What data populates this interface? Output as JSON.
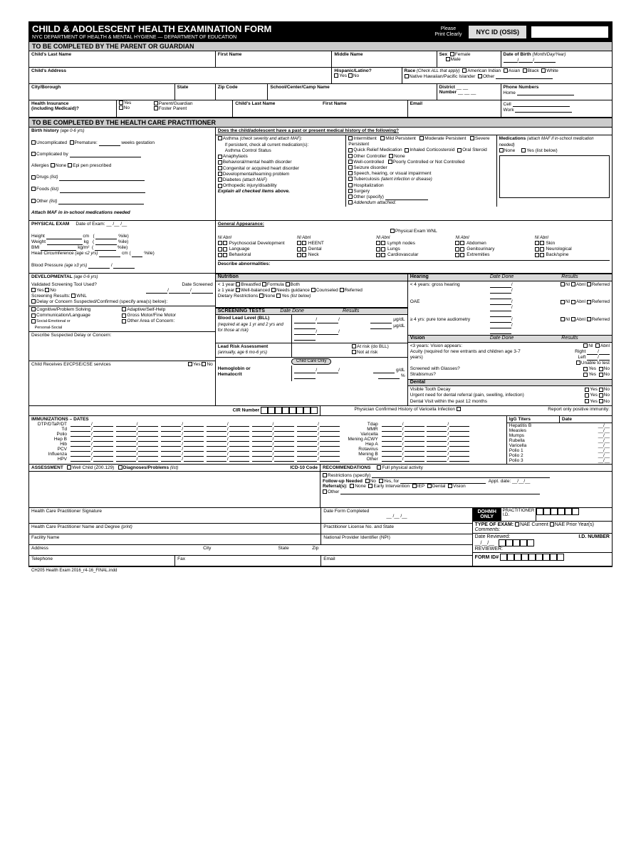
{
  "header": {
    "title": "CHILD & ADOLESCENT HEALTH EXAMINATION FORM",
    "subtitle": "NYC DEPARTMENT OF HEALTH & MENTAL HYGIENE   —   DEPARTMENT OF EDUCATION",
    "please": "Please\nPrint Clearly",
    "nycid": "NYC ID (OSIS)"
  },
  "sections": {
    "parent": "TO BE COMPLETED BY THE PARENT OR GUARDIAN",
    "practitioner": "TO BE COMPLETED BY THE HEALTH CARE PRACTITIONER"
  },
  "parent_fields": {
    "lastname": "Child's Last Name",
    "firstname": "First Name",
    "middlename": "Middle Name",
    "sex": "Sex",
    "female": "Female",
    "male": "Male",
    "dob": "Date of Birth",
    "dob_hint": "(Month/Day/Year)",
    "address": "Child's Address",
    "hisp": "Hispanic/Latino?",
    "yes": "Yes",
    "no": "No",
    "race": "Race",
    "race_hint": "(Check ALL that apply)",
    "races": [
      "American Indian",
      "Asian",
      "Black",
      "White",
      "Native Hawaiian/Pacific Islander",
      "Other"
    ],
    "city": "City/Borough",
    "state": "State",
    "zip": "Zip Code",
    "school": "School/Center/Camp Name",
    "district": "District",
    "number": "Number",
    "phones": "Phone Numbers",
    "home": "Home",
    "cell": "Cell",
    "work": "Work",
    "insurance": "Health Insurance\n(including Medicaid)?",
    "pg": "Parent/Guardian",
    "fp": "Foster Parent",
    "email": "Email"
  },
  "birth": {
    "label": "Birth history",
    "hint": "(age 0-6 yrs)",
    "uncomp": "Uncomplicated",
    "prem": "Premature:",
    "weeks": "weeks gestation",
    "compby": "Complicated by",
    "allergies": "Allergies",
    "none": "None",
    "epi": "Epi pen prescribed",
    "drugs": "Drugs",
    "list": "(list)",
    "foods": "Foods",
    "other": "Other",
    "maf": "Attach MAF in in-school medications needed"
  },
  "medhx": {
    "q": "Does the child/adolescent have a past or present medical history of the following?",
    "asthma": "Asthma",
    "asthma_hint": "(check severity and attach MAF):",
    "pers": "If persistent, check all current medication(s):",
    "acs": "Asthma Control Status",
    "col1": [
      "Anaphylaxis",
      "Behavioral/mental health disorder",
      "Congenital or acquired heart disorder",
      "Developmental/learning problem",
      "Diabetes",
      "Orthopedic injury/disability"
    ],
    "diab_hint": "(attach MAF)",
    "explain": "Explain all checked items above.",
    "sev": [
      "Intermittent",
      "Mild Persistent",
      "Moderate Persistent",
      "Severe Persistent"
    ],
    "meds_line": [
      "Quick Relief Medication",
      "Inhaled Corticosteroid",
      "Oral Steroid",
      "Other Controller",
      "None"
    ],
    "ctrl": [
      "Well-controlled",
      "Poorly Controlled or Not Controlled"
    ],
    "col2": [
      "Seizure disorder",
      "Speech, hearing, or visual impairment",
      "Tuberculosis",
      "Hospitalization",
      "Surgery",
      "Other (specify)",
      "Addendum attached."
    ],
    "tb_hint": "(latent infection or disease)",
    "medications": "Medications",
    "med_hint": "(attach MAF if in-school medication needed)",
    "yes_below": "Yes (list below)"
  },
  "phys": {
    "title": "PHYSICAL EXAM",
    "doe": "Date of Exam:",
    "height": "Height",
    "cm": "cm",
    "pct": "%ile",
    "weight": "Weight",
    "kg": "kg",
    "bmi": "BMI",
    "kgm2": "kg/m²",
    "hc": "Head Circumference",
    "hc_hint": "(age ≤2 yrs)",
    "bp": "Blood Pressure",
    "bp_hint": "(age ≥3 yrs)"
  },
  "ga": {
    "title": "General Appearance:",
    "wnl": "Physical Exam WNL",
    "col_hdr": "Nl  Abnl",
    "rows1": [
      "Psychosocial Development",
      "Language",
      "Behavioral"
    ],
    "rows2": [
      "HEENT",
      "Dental",
      "Neck"
    ],
    "rows3": [
      "Lymph nodes",
      "Lungs",
      "Cardiovascular"
    ],
    "rows4": [
      "Abdomen",
      "Genitourinary",
      "Extremities"
    ],
    "rows5": [
      "Skin",
      "Neurological",
      "Back/spine"
    ],
    "desc": "Describe abnormalities:"
  },
  "dev": {
    "title": "DEVELOPMENTAL",
    "hint": "(age 0-6 yrs)",
    "vs": "Validated Screening Tool Used?",
    "ds": "Date Screened",
    "sr": "Screening Results:",
    "wnl": "WNL",
    "delay": "Delay or Concern Suspected/Confirmed (specify area(s) below):",
    "areas": [
      "Cognitive/Problem Solving",
      "Communication/Language",
      "Social-Emotional or\nPersonal-Social",
      "Adaptive/Self-Help",
      "Gross Motor/Fine Motor",
      "Other Area of Concern:"
    ],
    "describe": "Describe Suspected Delay or Concern:",
    "ei": "Child Receives EI/CPSE/CSE services"
  },
  "nutrition": {
    "title": "Nutrition",
    "lt1": "< 1 year",
    "bf": "Breastfed",
    "fm": "Formula",
    "both": "Both",
    "ge1": "≥ 1 year",
    "wb": "Well-balanced",
    "ng": "Needs guidance",
    "co": "Counseled",
    "ref": "Referred",
    "dr": "Dietary Restrictions",
    "listbelow": "(list below)"
  },
  "screen": {
    "title": "SCREENING TESTS",
    "dd": "Date Done",
    "res": "Results",
    "bll": "Blood Lead Level (BLL)",
    "bll_hint": "(required at age 1 yr and 2 yrs and for those at risk)",
    "ugdl": "μg/dL",
    "lra": "Lead Risk Assessment",
    "lra_hint": "(annually, age 6 mo-6 yrs)",
    "atrisk": "At risk (do BLL)",
    "notrisk": "Not at risk",
    "cco": "Child Care Only",
    "hgb": "Hemoglobin or\nHematocrit",
    "gdl": "g/dL",
    "pct": "%"
  },
  "hearing": {
    "title": "Hearing",
    "dd": "Date Done",
    "res": "Results",
    "lt4": "< 4 years: gross hearing",
    "oae": "OAE",
    "ge4": "≥ 4 yrs: pure tone audiometry",
    "n": "Nl",
    "a": "Abnl",
    "r": "Referred"
  },
  "vision": {
    "title": "Vision",
    "dd": "Date Done",
    "res": "Results",
    "lt3": "<3 years: Vision appears:",
    "n": "Nl",
    "a": "Abnl",
    "acuity": "Acuity (required for new entrants and children age 3-7 years)",
    "right": "Right",
    "left": "Left",
    "unable": "Unable to test",
    "glasses": "Screened with Glasses?",
    "strab": "Strabismus?"
  },
  "dental": {
    "title": "Dental",
    "decay": "Visible Tooth Decay",
    "urgent": "Urgent need for dental referral (pain, swelling, infection)",
    "visit": "Dental Visit within the past 12 months"
  },
  "cir": "CIR Number",
  "varicella": "Physician Confirmed History of Varicella Infection",
  "immun": {
    "title": "IMMUNIZATIONS – DATES",
    "posimm": "Report only positive immunity:",
    "igg": "IgG Titers",
    "date": "Date",
    "left": [
      "DTP/DTaP/DT",
      "Td",
      "Polio",
      "Hep B",
      "Hib",
      "PCV",
      "Influenza",
      "HPV"
    ],
    "mid": [
      "Tdap",
      "MMR",
      "Varicella",
      "Mening ACWY",
      "Hep A",
      "Rotavirus",
      "Mening B",
      "Other"
    ],
    "right": [
      "Hepatitis B",
      "Measles",
      "Mumps",
      "Rubella",
      "Varicella",
      "Polio 1",
      "Polio 2",
      "Polio 3"
    ]
  },
  "assess": {
    "title": "ASSESSMENT",
    "well": "Well Child (Z00.129)",
    "diag": "Diagnoses/Problems",
    "list": "(list)",
    "icd": "ICD-10 Code"
  },
  "rec": {
    "title": "RECOMMENDATIONS",
    "full": "Full physical activity",
    "restr": "Restrictions (specify)",
    "fu": "Follow-up Needed",
    "yesfor": "Yes, for",
    "appt": "Appt. date:",
    "refs": "Referral(s):",
    "opts": [
      "None",
      "Early Intervention",
      "IEP",
      "Dental",
      "Vision"
    ],
    "other": "Other"
  },
  "sig": {
    "sig": "Health Care Practitioner Signature",
    "dfc": "Date Form Completed",
    "name": "Health Care Practitioner Name and Degree",
    "print": "(print)",
    "lic": "Practitioner License No. and State",
    "fac": "Facility Name",
    "npi": "National Provider Identifier (NPI)",
    "addr": "Address",
    "city": "City",
    "state": "State",
    "zip": "Zip",
    "tel": "Telephone",
    "fax": "Fax",
    "email": "Email"
  },
  "dohmh": {
    "box": "DOHMH\nONLY",
    "pid": "PRACTITIONER\nI.D.",
    "toe": "TYPE OF EXAM:",
    "nae": "NAE Current",
    "prior": "NAE Prior Year(s)",
    "cmt": "Comments:",
    "dr": "Date Reviewed:",
    "idn": "I.D. NUMBER",
    "rev": "REVIEWER:",
    "fid": "FORM ID#"
  },
  "footer": "CH205 Health Exam 2016_r4-16_FINAL.indd"
}
